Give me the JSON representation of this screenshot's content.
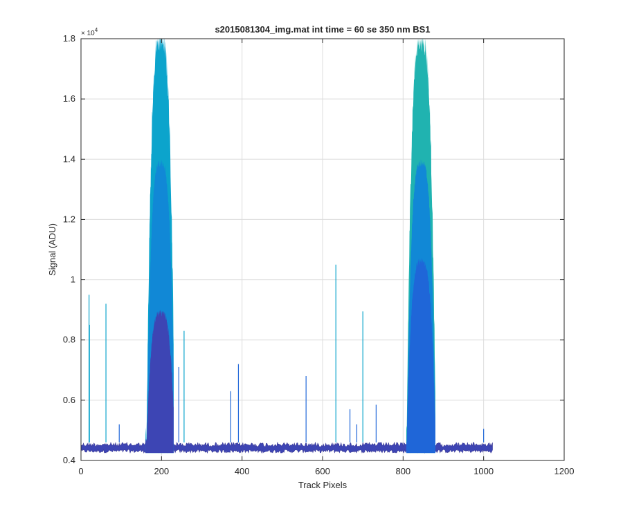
{
  "chart_data": {
    "type": "line",
    "title": "s2015081304_img.mat int time = 60 se  350 nm BS1",
    "xlabel": "Track Pixels",
    "ylabel": "Signal (ADU)",
    "xlim": [
      0,
      1200
    ],
    "ylim": [
      4000,
      18000
    ],
    "y_exponent_label": "× 10",
    "y_exponent_power": "4",
    "xticks": [
      0,
      200,
      400,
      600,
      800,
      1000,
      1200
    ],
    "xtick_labels": [
      "0",
      "200",
      "400",
      "600",
      "800",
      "1000",
      "1200"
    ],
    "yticks": [
      4000,
      6000,
      8000,
      10000,
      12000,
      14000,
      16000,
      18000
    ],
    "ytick_labels": [
      "0.4",
      "0.6",
      "0.8",
      "1",
      "1.2",
      "1.4",
      "1.6",
      "1.8"
    ],
    "grid": true,
    "legend": "none",
    "colormap": [
      "#3b3a98",
      "#3d45b4",
      "#1f66d8",
      "#1188d6",
      "#0ca4cc",
      "#20b3b0"
    ],
    "baseline": {
      "x_start": 0,
      "x_end": 1023,
      "low": 4250,
      "high": 4600
    },
    "peaks": [
      {
        "name": "peak 1",
        "x_start": 160,
        "x_end": 230,
        "center": 198,
        "outer_max": 17800,
        "inner_max": 8900
      },
      {
        "name": "peak 2",
        "x_start": 808,
        "x_end": 880,
        "center": 845,
        "outer_max": 17800,
        "inner_max": 10600
      }
    ],
    "spikes": [
      {
        "x": 20,
        "y": 9500
      },
      {
        "x": 21,
        "y": 8500
      },
      {
        "x": 62,
        "y": 9200
      },
      {
        "x": 95,
        "y": 5200
      },
      {
        "x": 243,
        "y": 7100
      },
      {
        "x": 256,
        "y": 8300
      },
      {
        "x": 372,
        "y": 6300
      },
      {
        "x": 391,
        "y": 7200
      },
      {
        "x": 559,
        "y": 6800
      },
      {
        "x": 633,
        "y": 10500
      },
      {
        "x": 668,
        "y": 5700
      },
      {
        "x": 685,
        "y": 5200
      },
      {
        "x": 700,
        "y": 8950
      },
      {
        "x": 733,
        "y": 5850
      },
      {
        "x": 1000,
        "y": 5050
      }
    ]
  }
}
